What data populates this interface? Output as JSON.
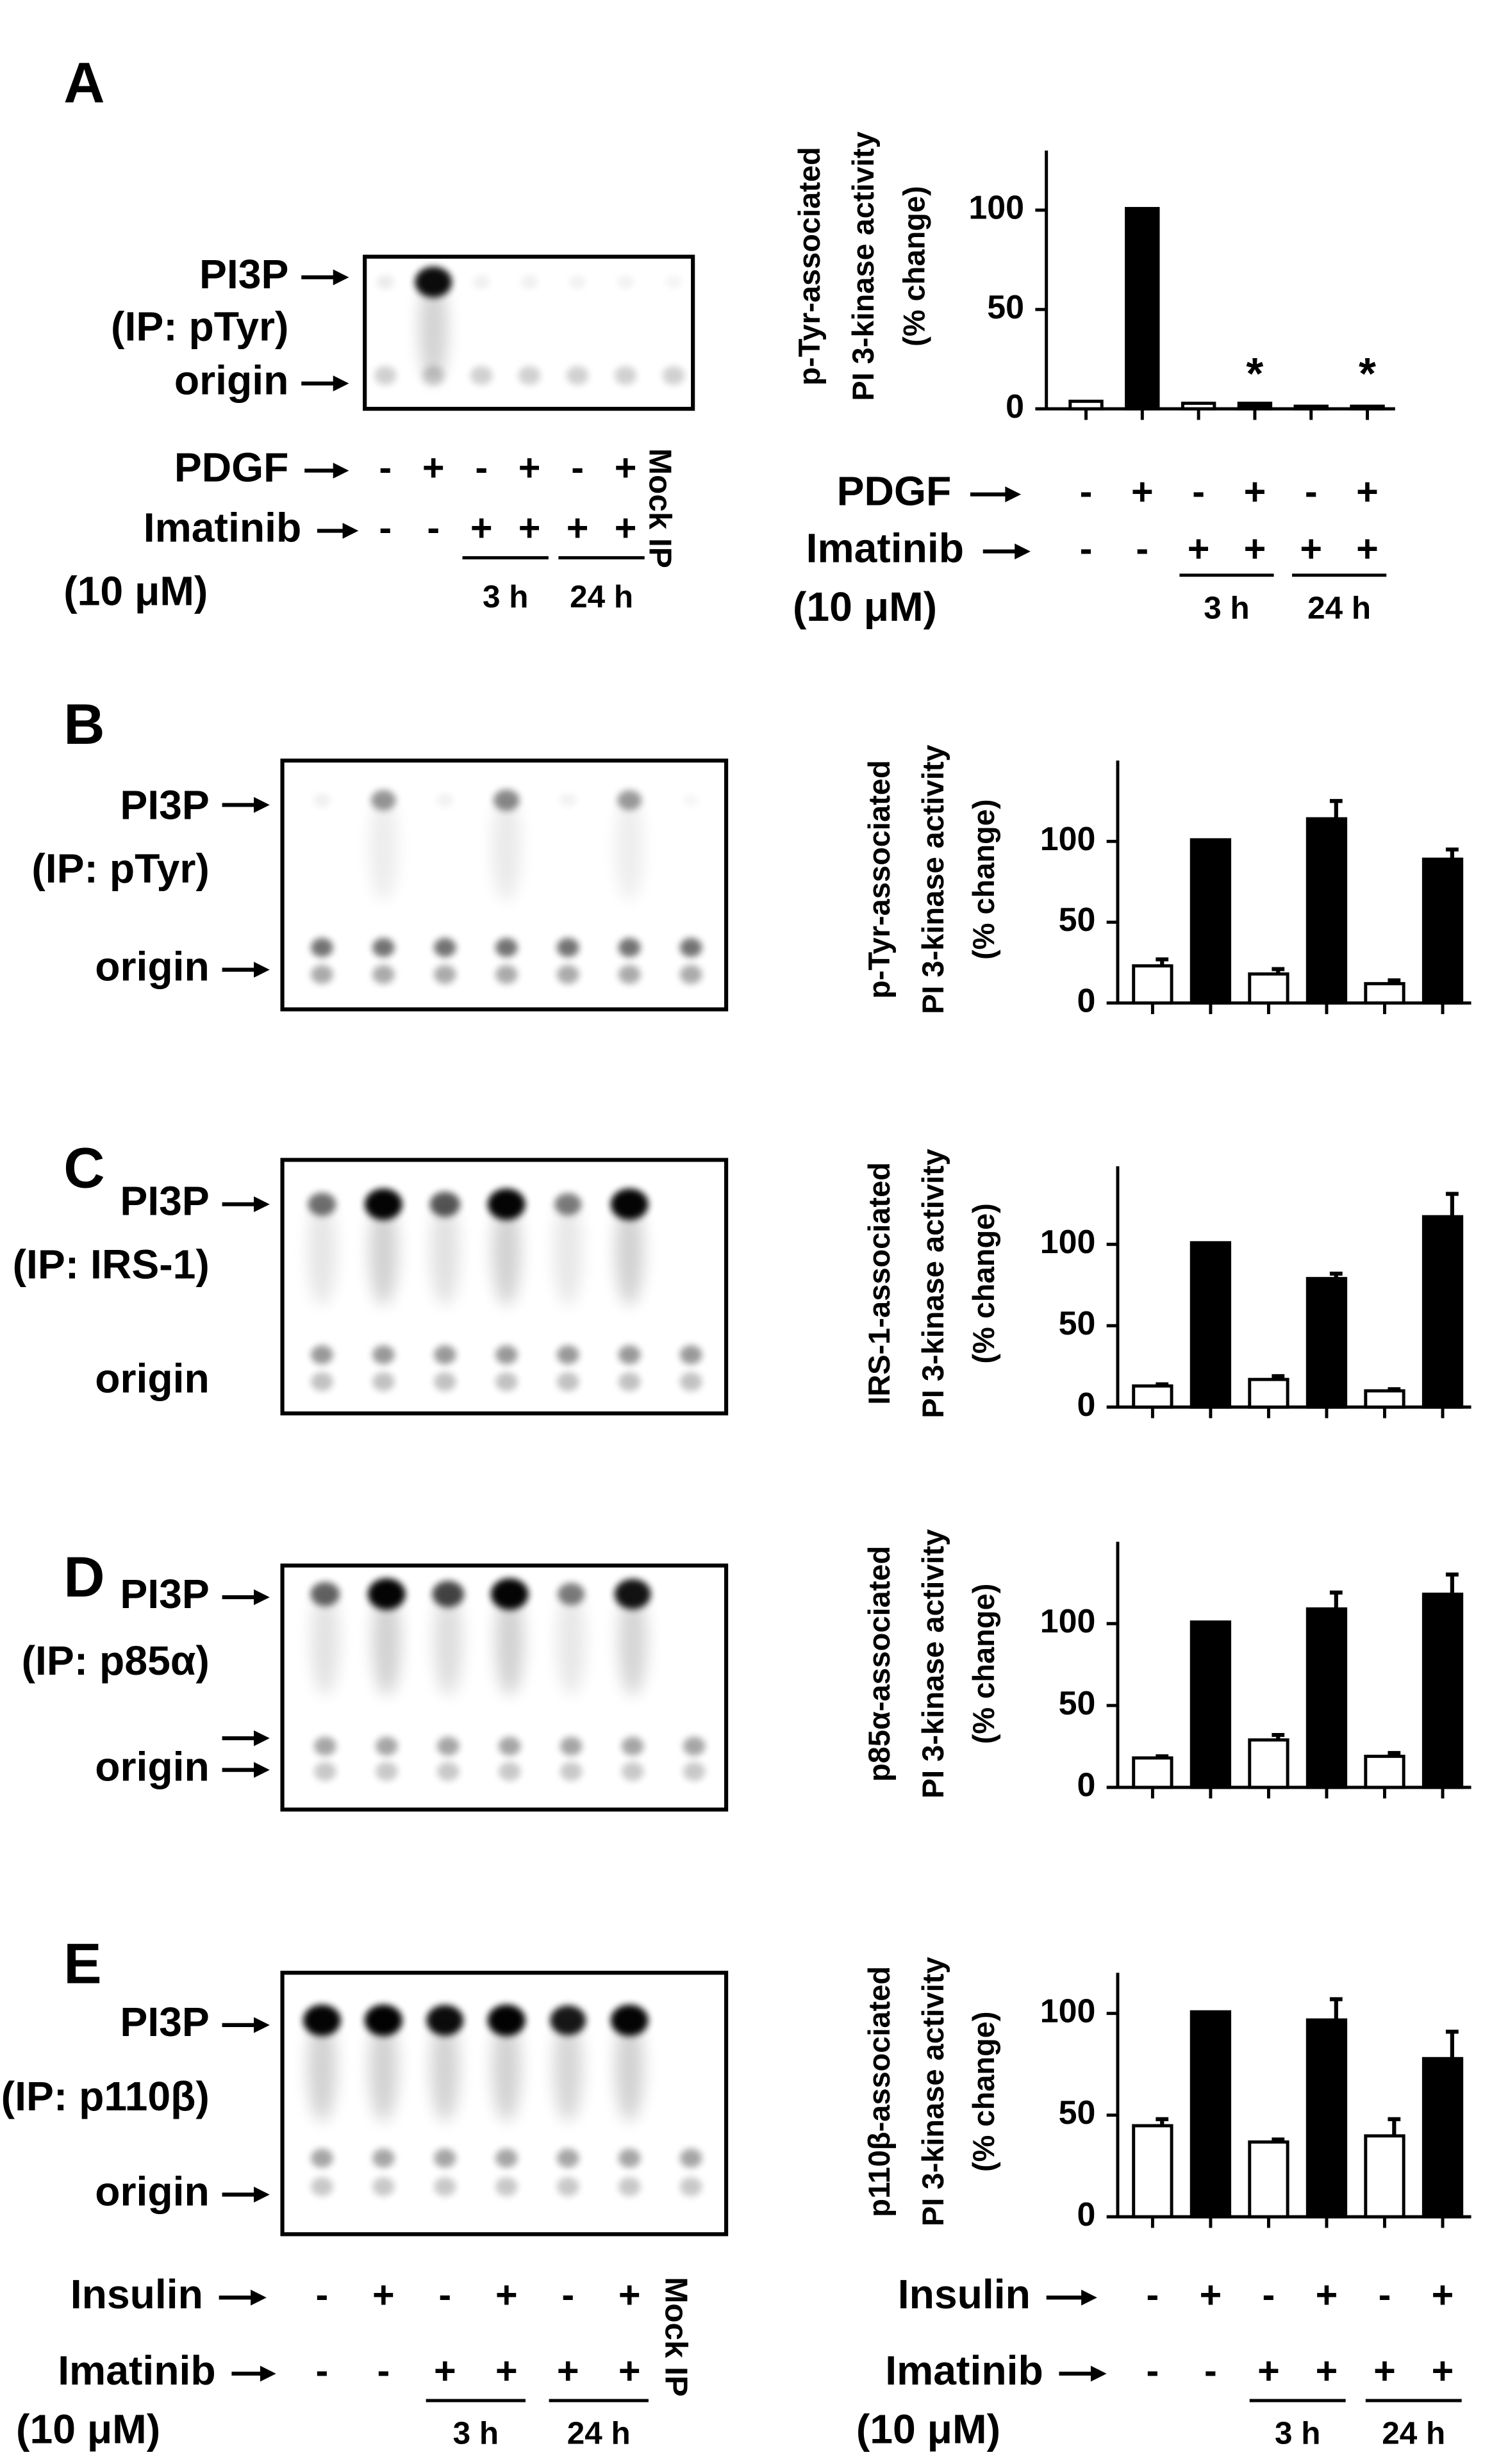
{
  "chart_data": [
    {
      "type": "bar",
      "ylabel": [
        "p-Tyr-associated",
        "PI 3-kinase activity",
        "(% change)"
      ],
      "values": [
        3,
        100,
        2,
        2,
        0.5,
        0.5
      ],
      "colors": [
        "#ffffff",
        "#000000",
        "#ffffff",
        "#000000",
        "#ffffff",
        "#000000"
      ],
      "ylim": [
        0,
        130
      ],
      "yticks": [
        0,
        50,
        100
      ],
      "annotations": [
        "*",
        "*"
      ]
    },
    {
      "type": "bar",
      "ylabel": [
        "p-Tyr-associated",
        "PI 3-kinase activity",
        "(% change)"
      ],
      "values": [
        22,
        100,
        17,
        113,
        11,
        88
      ],
      "errors": [
        5,
        0,
        4,
        12,
        3,
        7
      ],
      "colors": [
        "#ffffff",
        "#000000",
        "#ffffff",
        "#000000",
        "#ffffff",
        "#000000"
      ],
      "ylim": [
        0,
        150
      ],
      "yticks": [
        0,
        50,
        100
      ]
    },
    {
      "type": "bar",
      "ylabel": [
        "IRS-1-associated",
        "PI 3-kinase activity",
        "(% change)"
      ],
      "values": [
        12,
        100,
        16,
        78,
        9,
        116
      ],
      "errors": [
        2,
        0,
        3,
        4,
        2,
        15
      ],
      "colors": [
        "#ffffff",
        "#000000",
        "#ffffff",
        "#000000",
        "#ffffff",
        "#000000"
      ],
      "ylim": [
        0,
        148
      ],
      "yticks": [
        0,
        50,
        100
      ]
    },
    {
      "type": "bar",
      "ylabel": [
        "p85α-associated",
        "PI 3-kinase activity",
        "(% change)"
      ],
      "values": [
        17,
        100,
        28,
        108,
        18,
        117
      ],
      "errors": [
        2,
        0,
        4,
        11,
        3,
        13
      ],
      "colors": [
        "#ffffff",
        "#000000",
        "#ffffff",
        "#000000",
        "#ffffff",
        "#000000"
      ],
      "ylim": [
        0,
        150
      ],
      "yticks": [
        0,
        50,
        100
      ]
    },
    {
      "type": "bar",
      "ylabel": [
        "p110β-associated",
        "PI 3-kinase activity",
        "(% change)"
      ],
      "values": [
        44,
        100,
        36,
        96,
        39,
        77
      ],
      "errors": [
        4,
        0,
        2,
        11,
        9,
        14
      ],
      "colors": [
        "#ffffff",
        "#000000",
        "#ffffff",
        "#000000",
        "#ffffff",
        "#000000"
      ],
      "ylim": [
        0,
        120
      ],
      "yticks": [
        0,
        50,
        100
      ]
    }
  ],
  "panels": [
    {
      "letter": "A",
      "blot_labels": [
        "PI3P",
        "(IP: pTyr)",
        "origin"
      ]
    },
    {
      "letter": "B",
      "blot_labels": [
        "PI3P",
        "(IP: pTyr)",
        "origin"
      ]
    },
    {
      "letter": "C",
      "blot_labels": [
        "PI3P",
        "(IP: IRS-1)",
        "origin"
      ]
    },
    {
      "letter": "D",
      "blot_labels": [
        "PI3P",
        "(IP: p85α)",
        "origin"
      ]
    },
    {
      "letter": "E",
      "blot_labels": [
        "PI3P",
        "(IP: p110β)",
        "origin"
      ]
    }
  ],
  "treatments": [
    {
      "stimulus": "PDGF",
      "stimulus_signs": [
        "-",
        "+",
        "-",
        "+",
        "-",
        "+"
      ],
      "inhibitor": "Imatinib",
      "inhibitor_signs": [
        "-",
        "-",
        "+",
        "+",
        "+",
        "+"
      ],
      "dose": "(10 μM)",
      "times": [
        "3 h",
        "24 h"
      ],
      "mock": "Mock IP"
    },
    {
      "stimulus": "PDGF",
      "stimulus_signs": [
        "-",
        "+",
        "-",
        "+",
        "-",
        "+"
      ],
      "inhibitor": "Imatinib",
      "inhibitor_signs": [
        "-",
        "-",
        "+",
        "+",
        "+",
        "+"
      ],
      "dose": "(10 μM)",
      "times": [
        "3 h",
        "24 h"
      ]
    },
    {
      "stimulus": "Insulin",
      "stimulus_signs": [
        "-",
        "+",
        "-",
        "+",
        "-",
        "+"
      ],
      "inhibitor": "Imatinib",
      "inhibitor_signs": [
        "-",
        "-",
        "+",
        "+",
        "+",
        "+"
      ],
      "dose": "(10 μM)",
      "times": [
        "3 h",
        "24 h"
      ],
      "mock": "Mock IP"
    },
    {
      "stimulus": "Insulin",
      "stimulus_signs": [
        "-",
        "+",
        "-",
        "+",
        "-",
        "+"
      ],
      "inhibitor": "Imatinib",
      "inhibitor_signs": [
        "-",
        "-",
        "+",
        "+",
        "+",
        "+"
      ],
      "dose": "(10 μM)",
      "times": [
        "3 h",
        "24 h"
      ]
    }
  ]
}
